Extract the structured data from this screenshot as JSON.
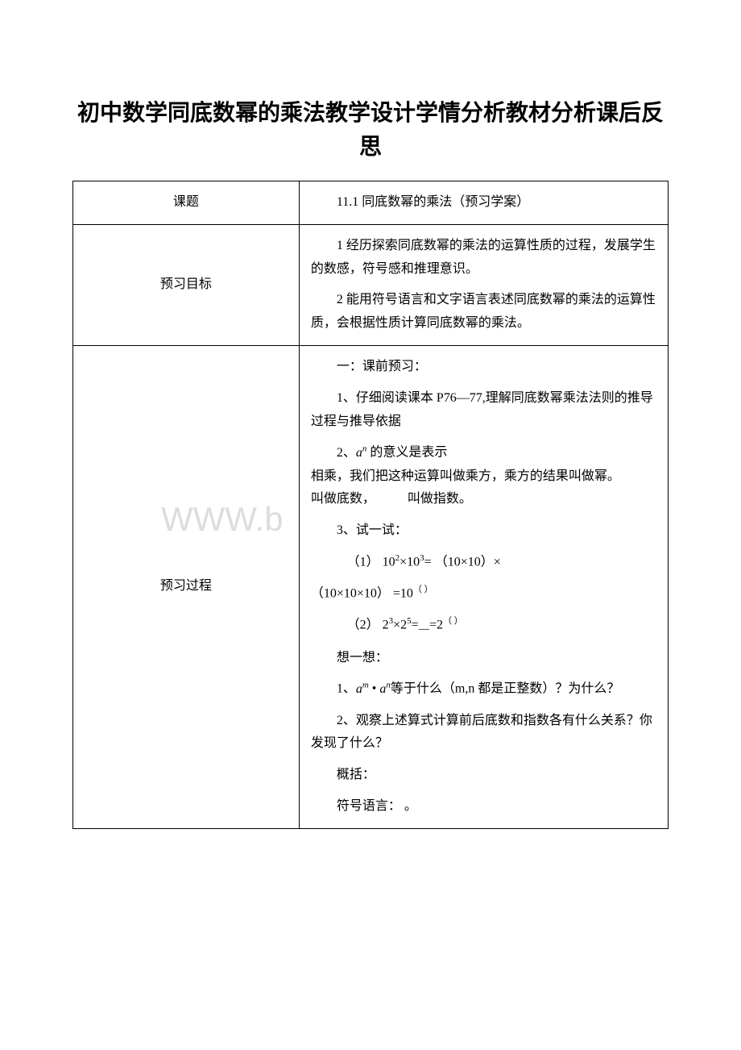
{
  "title": "初中数学同底数幂的乘法教学设计学情分析教材分析课后反思",
  "watermark": "WWW.b",
  "rows": {
    "r1": {
      "label": "课题",
      "content": "11.1 同底数幂的乘法（预习学案）"
    },
    "r2": {
      "label": "预习目标",
      "p1": "1 经历探索同底数幂的乘法的运算性质的过程，发展学生的数感，符号感和推理意识。",
      "p2": "2 能用符号语言和文字语言表述同底数幂的乘法的运算性质，会根据性质计算同底数幂的乘法。"
    },
    "r3": {
      "label": "预习过程",
      "h1": "一：课前预习：",
      "p1": "1、仔细阅读课本 P76—77,理解同底数幂乘法法则的推导过程与推导依据",
      "p2a": "2、",
      "p2b": " 的意义是表示",
      "p2c": "相乘，我们把这种运算叫做乘方，乘方的结果叫做幂。",
      "p2d_pre": "叫做底数，",
      "p2d_post": "叫做指数。",
      "p3": "3、试一试：",
      "eq1_pre": "（1）",
      "eq1_mid": "（10×10）×",
      "eq1_post": "（10×10×10）",
      "eq2_pre": "（2）",
      "think": "想一想：",
      "q1a": "1、",
      "q1b": "等于什么（m,n 都是正整数）？为什么？",
      "q2": "2、观察上述算式计算前后底数和指数各有什么关系？你发现了什么？",
      "q3": "概括：",
      "q4": "符号语言：  。"
    }
  }
}
